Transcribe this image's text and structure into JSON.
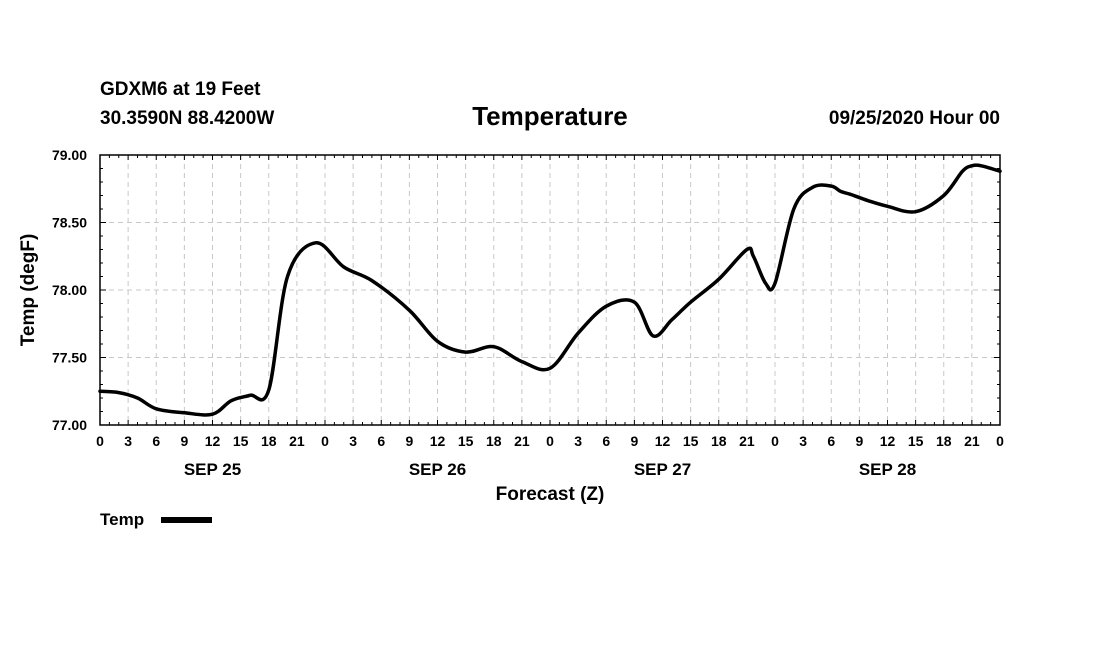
{
  "header": {
    "station": "GDXM6 at 19 Feet",
    "location": "30.3590N 88.4200W",
    "title": "Temperature",
    "issued": "09/25/2020 Hour 00"
  },
  "chart_data": {
    "type": "line",
    "title": "Temperature",
    "xlabel": "Forecast (Z)",
    "ylabel": "Temp (degF)",
    "ylim": [
      77.0,
      79.0
    ],
    "yticks": [
      "77.00",
      "77.50",
      "78.00",
      "78.50",
      "79.00"
    ],
    "x_hours_range": [
      0,
      96
    ],
    "xticks": [
      "0",
      "3",
      "6",
      "9",
      "12",
      "15",
      "18",
      "21",
      "0",
      "3",
      "6",
      "9",
      "12",
      "15",
      "18",
      "21",
      "0",
      "3",
      "6",
      "9",
      "12",
      "15",
      "18",
      "21",
      "0",
      "3",
      "6",
      "9",
      "12",
      "15",
      "18",
      "21",
      "0"
    ],
    "days": [
      {
        "label": "SEP 25",
        "center_hour": 12
      },
      {
        "label": "SEP 26",
        "center_hour": 36
      },
      {
        "label": "SEP 27",
        "center_hour": 60
      },
      {
        "label": "SEP 28",
        "center_hour": 84
      }
    ],
    "grid": true,
    "legend": "bottom-left",
    "series": [
      {
        "name": "Temp",
        "x": [
          0,
          2,
          4,
          6,
          9,
          12,
          14,
          16,
          18,
          20,
          23,
          26,
          29,
          33,
          36,
          39,
          42,
          45,
          48,
          51,
          54,
          57,
          59,
          61,
          63,
          66,
          69,
          69.7,
          71,
          72,
          74,
          76,
          78,
          79,
          80,
          82,
          84,
          87,
          90,
          92,
          93,
          94,
          96
        ],
        "y": [
          77.25,
          77.24,
          77.2,
          77.12,
          77.09,
          77.08,
          77.18,
          77.22,
          77.26,
          78.1,
          78.35,
          78.17,
          78.07,
          77.85,
          77.62,
          77.54,
          77.58,
          77.47,
          77.42,
          77.68,
          77.88,
          77.91,
          77.66,
          77.78,
          77.91,
          78.08,
          78.3,
          78.25,
          78.05,
          78.05,
          78.6,
          78.76,
          78.77,
          78.73,
          78.71,
          78.66,
          78.62,
          78.58,
          78.7,
          78.88,
          78.92,
          78.92,
          78.88
        ]
      }
    ]
  }
}
